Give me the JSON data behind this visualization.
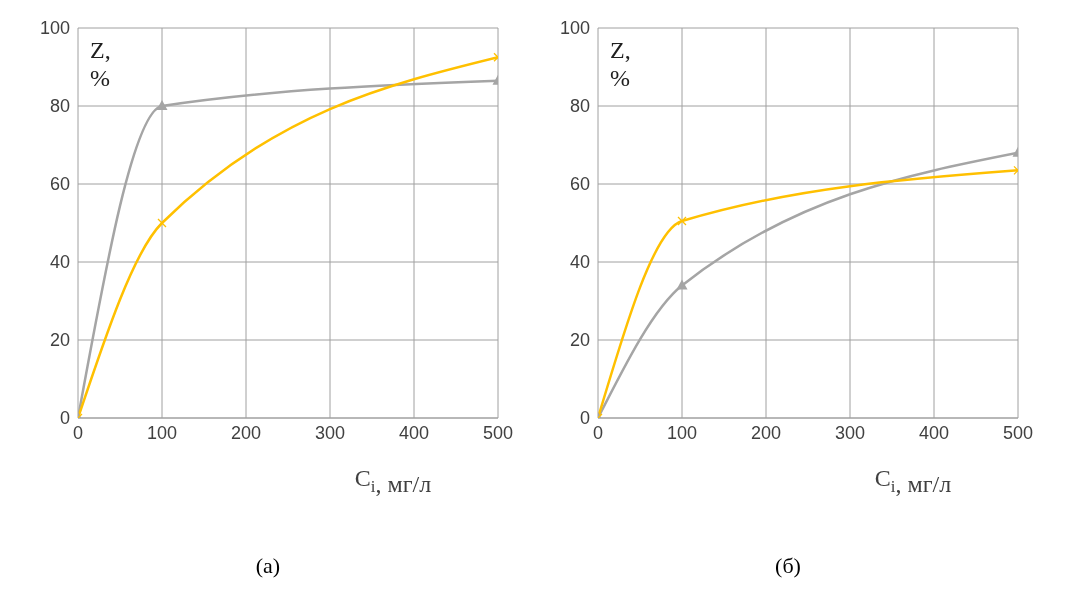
{
  "chart_data": [
    {
      "type": "line",
      "ylabel": "Z, %",
      "xlabel": "C$_{i}$, мг/л",
      "x": [
        0,
        100,
        500
      ],
      "xlim": [
        0,
        500
      ],
      "xticks": [
        0,
        100,
        200,
        300,
        400,
        500
      ],
      "ylim": [
        0,
        100
      ],
      "yticks": [
        0,
        20,
        40,
        60,
        80,
        100
      ],
      "grid": true,
      "legend": false,
      "line_style": "solid",
      "annotations": [
        "(а)"
      ],
      "series": [
        {
          "color": "#a5a5a5",
          "marker": "triangle",
          "values": [
            0,
            80,
            86.5
          ]
        },
        {
          "color": "#ffc000",
          "marker": "cross",
          "values": [
            0,
            50,
            92.5
          ]
        }
      ]
    },
    {
      "type": "line",
      "ylabel": "Z, %",
      "xlabel": "C$_{i}$, мг/л",
      "x": [
        0,
        100,
        500
      ],
      "xlim": [
        0,
        500
      ],
      "xticks": [
        0,
        100,
        200,
        300,
        400,
        500
      ],
      "ylim": [
        0,
        100
      ],
      "yticks": [
        0,
        20,
        40,
        60,
        80,
        100
      ],
      "grid": true,
      "legend": false,
      "line_style": "solid",
      "annotations": [
        "(б)"
      ],
      "series": [
        {
          "color": "#a5a5a5",
          "marker": "triangle",
          "values": [
            0,
            34,
            68
          ]
        },
        {
          "color": "#ffc000",
          "marker": "cross",
          "values": [
            0,
            50.5,
            63.5
          ]
        }
      ]
    }
  ]
}
